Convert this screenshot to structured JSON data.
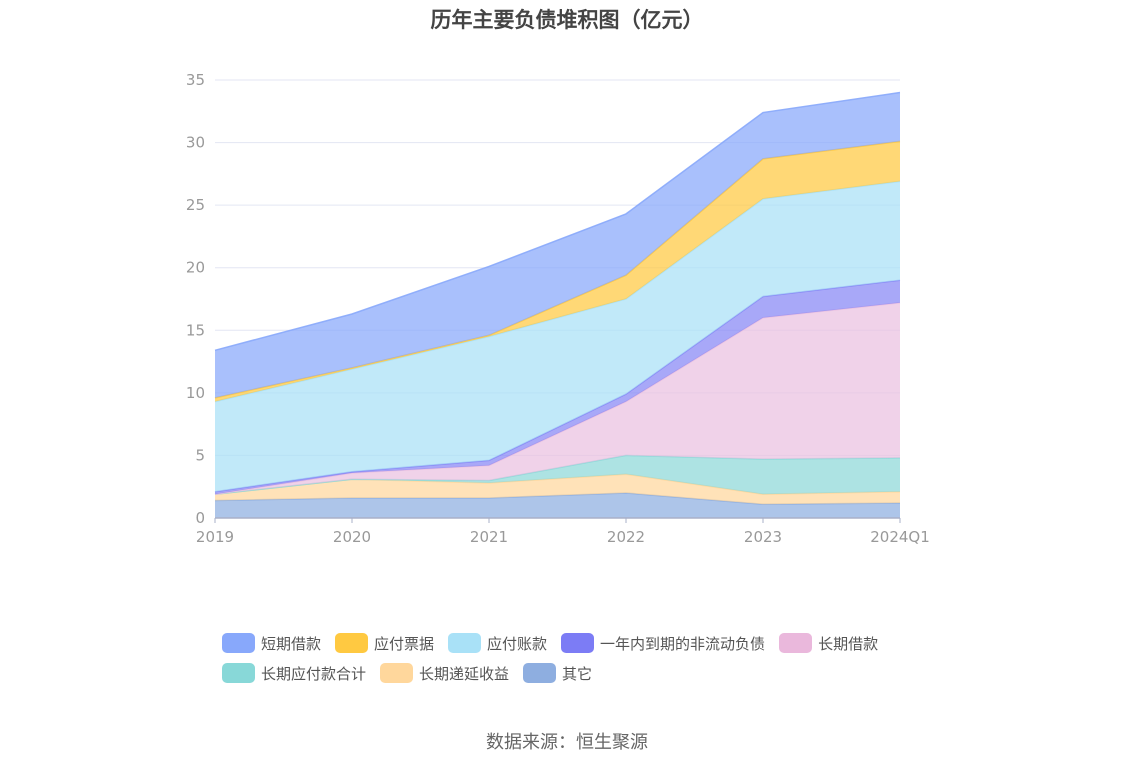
{
  "chart_data": {
    "type": "area",
    "stacked": true,
    "title": "历年主要负债堆积图（亿元）",
    "categories": [
      "2019",
      "2020",
      "2021",
      "2022",
      "2023",
      "2024Q1"
    ],
    "ylim": [
      0,
      35
    ],
    "yticks": [
      0,
      5,
      10,
      15,
      20,
      25,
      30,
      35
    ],
    "grid": true,
    "legend_position": "bottom",
    "series": [
      {
        "name": "其它",
        "color": "#8eaee0",
        "values": [
          1.4,
          1.6,
          1.6,
          2.0,
          1.1,
          1.2
        ]
      },
      {
        "name": "长期递延收益",
        "color": "#ffd79c",
        "values": [
          0.5,
          1.5,
          1.2,
          1.5,
          0.8,
          0.9
        ]
      },
      {
        "name": "长期应付款合计",
        "color": "#8dd8d8",
        "values": [
          0,
          0,
          0.2,
          1.5,
          2.8,
          2.7
        ]
      },
      {
        "name": "长期借款",
        "color": "#eac1e0",
        "values": [
          0,
          0.5,
          1.2,
          4.3,
          11.3,
          12.4
        ]
      },
      {
        "name": "一年内到期的非流动负债",
        "color": "#8686f5",
        "values": [
          0.2,
          0.1,
          0.4,
          0.6,
          1.7,
          1.8
        ]
      },
      {
        "name": "应付账款",
        "color": "#a9e1f7",
        "values": [
          7.2,
          8.2,
          9.9,
          7.6,
          7.8,
          7.9
        ]
      },
      {
        "name": "应付票据",
        "color": "#ffc941",
        "values": [
          0.3,
          0.1,
          0.1,
          1.9,
          3.2,
          3.2
        ]
      },
      {
        "name": "短期借款",
        "color": "#88a8fb",
        "values": [
          3.8,
          4.3,
          5.5,
          4.9,
          3.7,
          3.9
        ]
      }
    ]
  },
  "legend_order": [
    [
      "短期借款",
      "应付票据",
      "应付账款",
      "一年内到期的非流动负债",
      "长期借款"
    ],
    [
      "长期应付款合计",
      "长期递延收益",
      "其它"
    ]
  ],
  "legend_colors": {
    "短期借款": "#88a8fb",
    "应付票据": "#ffc941",
    "应付账款": "#a9e1f7",
    "一年内到期的非流动负债": "#7c7cf5",
    "长期借款": "#eab8dc",
    "长期应付款合计": "#88d8d8",
    "长期递延收益": "#ffd79c",
    "其它": "#8eaee0"
  },
  "source": "数据来源：恒生聚源"
}
